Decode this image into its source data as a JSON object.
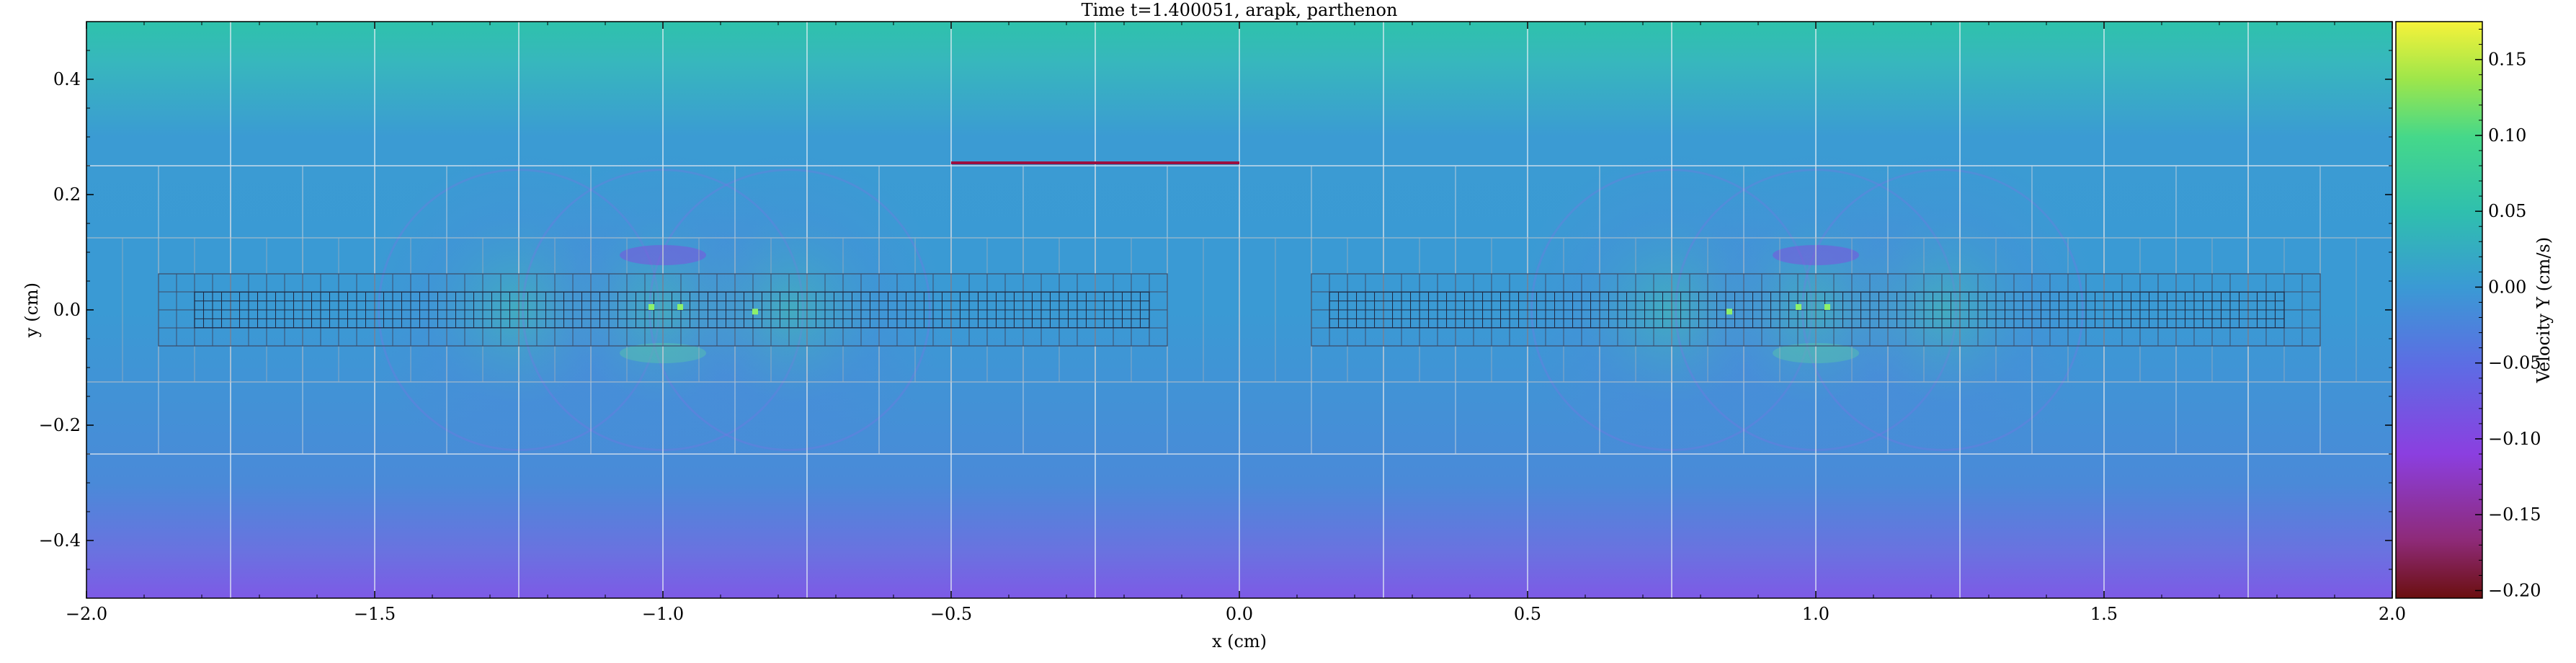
{
  "chart_data": {
    "type": "heatmap",
    "title": "Time t=1.400051, arapk, parthenon",
    "xlabel": "x  (cm)",
    "ylabel": "y  (cm)",
    "xlim": [
      -2.0,
      2.0
    ],
    "ylim": [
      -0.5,
      0.5
    ],
    "xticks": [
      -2.0,
      -1.5,
      -1.0,
      -0.5,
      0.0,
      0.5,
      1.0,
      1.5,
      2.0
    ],
    "xtick_labels": [
      "−2.0",
      "−1.5",
      "−1.0",
      "−0.5",
      "0.0",
      "0.5",
      "1.0",
      "1.5",
      "2.0"
    ],
    "yticks": [
      -0.4,
      -0.2,
      0.0,
      0.2,
      0.4
    ],
    "ytick_labels": [
      "−0.4",
      "−0.2",
      "0.0",
      "0.2",
      "0.4"
    ],
    "colorbar": {
      "label": "Velocity Y  (cm/s)",
      "colormap": "viridis-like (dark red → purple → blue → teal → green → yellow)",
      "vmin": -0.205,
      "vmax": 0.175,
      "ticks": [
        -0.2,
        -0.15,
        -0.1,
        -0.05,
        0.0,
        0.05,
        0.1,
        0.15
      ],
      "tick_labels": [
        "−0.20",
        "−0.15",
        "−0.10",
        "−0.05",
        "0.00",
        "0.05",
        "0.10",
        "0.15"
      ],
      "colors": [
        "#6b0f0f",
        "#8e2a78",
        "#8b3fe0",
        "#6f5fe6",
        "#4a84d8",
        "#3aa4c8",
        "#2fc4a5",
        "#4fdc7c",
        "#b8e83a",
        "#f4f23a"
      ]
    },
    "field_description": {
      "background_value_center": 0.01,
      "top_band_value": 0.05,
      "bottom_band_value": -0.06
    },
    "mesh_blocks": {
      "level0_grid_x": [
        -1.75,
        -1.5,
        -1.25,
        -1.0,
        -0.75,
        -0.5,
        -0.25,
        0.0,
        0.25,
        0.5,
        0.75,
        1.0,
        1.25,
        1.5,
        1.75
      ],
      "level1_band_y": [
        -0.25,
        0.25
      ],
      "level2_band_y": [
        -0.125,
        0.125
      ],
      "level3_left_x": [
        -1.875,
        -0.125
      ],
      "level3_right_x": [
        0.125,
        1.875
      ],
      "level3_band_y": [
        -0.0625,
        0.0625
      ],
      "level4_left_x": [
        -1.8125,
        -0.1563
      ],
      "level4_right_x": [
        0.1563,
        1.8125
      ],
      "level4_band_y": [
        -0.031,
        0.031
      ]
    },
    "annotations": [
      {
        "type": "line",
        "x": [
          -0.5,
          0.0
        ],
        "y": [
          0.255,
          0.255
        ],
        "color": "#9a1040"
      }
    ]
  }
}
